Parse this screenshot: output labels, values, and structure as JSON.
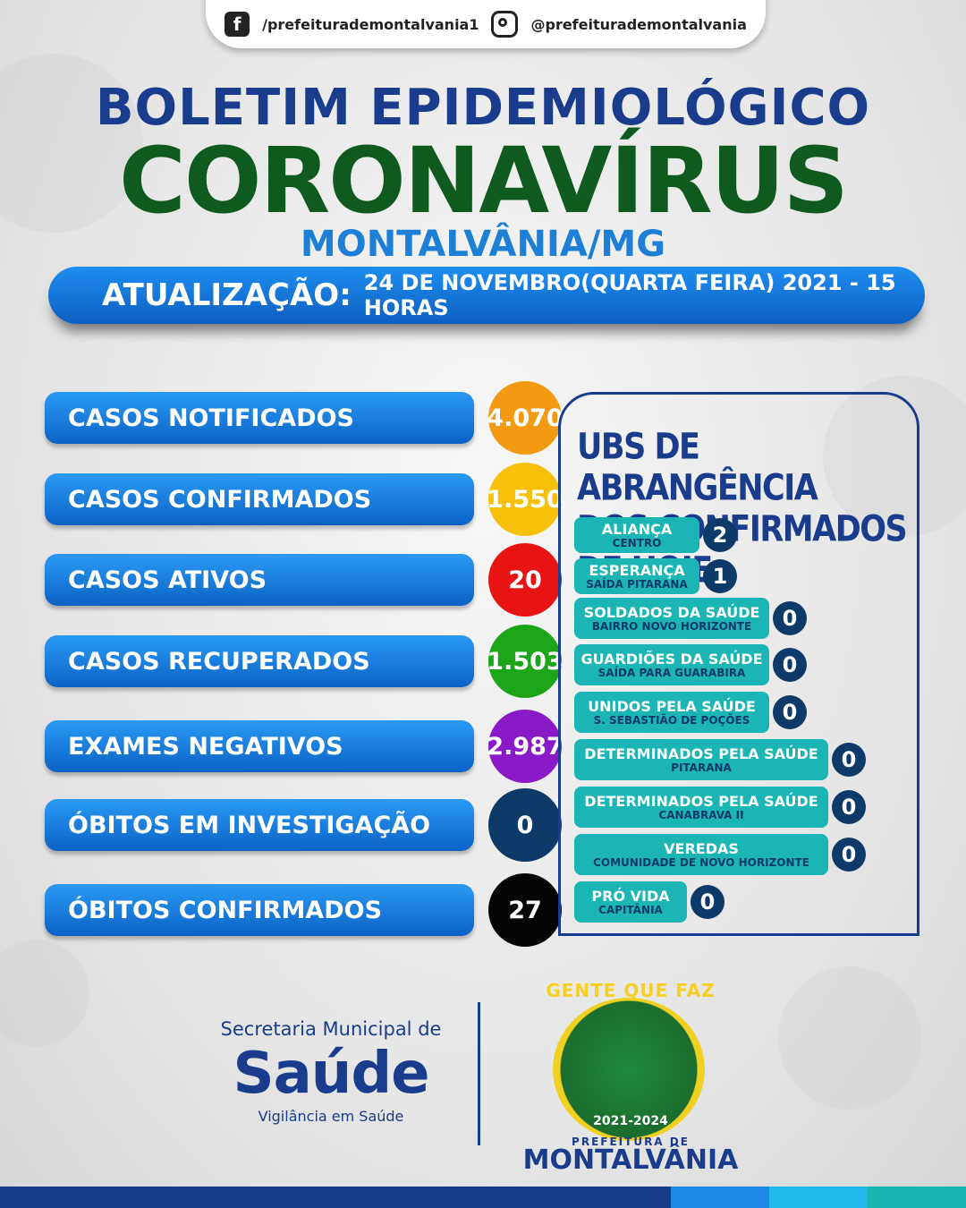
{
  "social": {
    "facebook": "/prefeiturademontalvania1",
    "instagram": "@prefeiturademontalvania"
  },
  "title": {
    "line1": "BOLETIM EPIDEMIOLÓGICO",
    "line2": "CORONAVÍRUS",
    "line3": "MONTALVÂNIA/MG"
  },
  "update": {
    "label": "ATUALIZAÇÃO:",
    "value": "24 DE NOVEMBRO(QUARTA FEIRA) 2021 - 15 HORAS"
  },
  "stats": [
    {
      "label": "CASOS NOTIFICADOS",
      "value": "4.070",
      "color": "#f39a12"
    },
    {
      "label": "CASOS CONFIRMADOS",
      "value": "1.550",
      "color": "#f7c10a"
    },
    {
      "label": "CASOS ATIVOS",
      "value": "20",
      "color": "#e81313"
    },
    {
      "label": "CASOS RECUPERADOS",
      "value": "1.503",
      "color": "#1da51a"
    },
    {
      "label": "EXAMES NEGATIVOS",
      "value": "2.987",
      "color": "#8a19c8"
    },
    {
      "label": "ÓBITOS EM INVESTIGAÇÃO",
      "value": "0",
      "color": "#0e3a6a"
    },
    {
      "label": "ÓBITOS CONFIRMADOS",
      "value": "27",
      "color": "#050505"
    }
  ],
  "ubs_panel": {
    "title_line1": "UBS DE ABRANGÊNCIA",
    "title_line2": "DOS CONFIRMADOS DE HOJE",
    "items": [
      {
        "name": "ALIANÇA",
        "sub": "CENTRO",
        "count": "2"
      },
      {
        "name": "ESPERANÇA",
        "sub": "SAÍDA PITARANA",
        "count": "1"
      },
      {
        "name": "SOLDADOS DA SAÚDE",
        "sub": "BAIRRO NOVO HORIZONTE",
        "count": "0"
      },
      {
        "name": "GUARDIÕES DA SAÚDE",
        "sub": "SAÍDA PARA GUARABIRA",
        "count": "0"
      },
      {
        "name": "UNIDOS PELA SAÚDE",
        "sub": "S. SEBASTIÃO DE POÇÕES",
        "count": "0"
      },
      {
        "name": "DETERMINADOS PELA SAÚDE",
        "sub": "PITARANA",
        "count": "0"
      },
      {
        "name": "DETERMINADOS PELA SAÚDE",
        "sub": "CANABRAVA II",
        "count": "0"
      },
      {
        "name": "VEREDAS",
        "sub": "COMUNIDADE DE NOVO HORIZONTE",
        "count": "0"
      },
      {
        "name": "PRÓ VIDA",
        "sub": "CAPITÂNIA",
        "count": "0"
      }
    ]
  },
  "footer": {
    "secretaria": "Secretaria Municipal de",
    "saude": "Saúde",
    "vigilancia": "Vigilância em Saúde",
    "logo_slogan": "GENTE QUE FAZ",
    "logo_years": "2021-2024",
    "logo_prefeitura": "PREFEITURA DE",
    "logo_city": "MONTALVÂNIA"
  },
  "stripe_colors": [
    "#173b86",
    "#1e88e5",
    "#1fb8e8",
    "#18b5b0"
  ]
}
